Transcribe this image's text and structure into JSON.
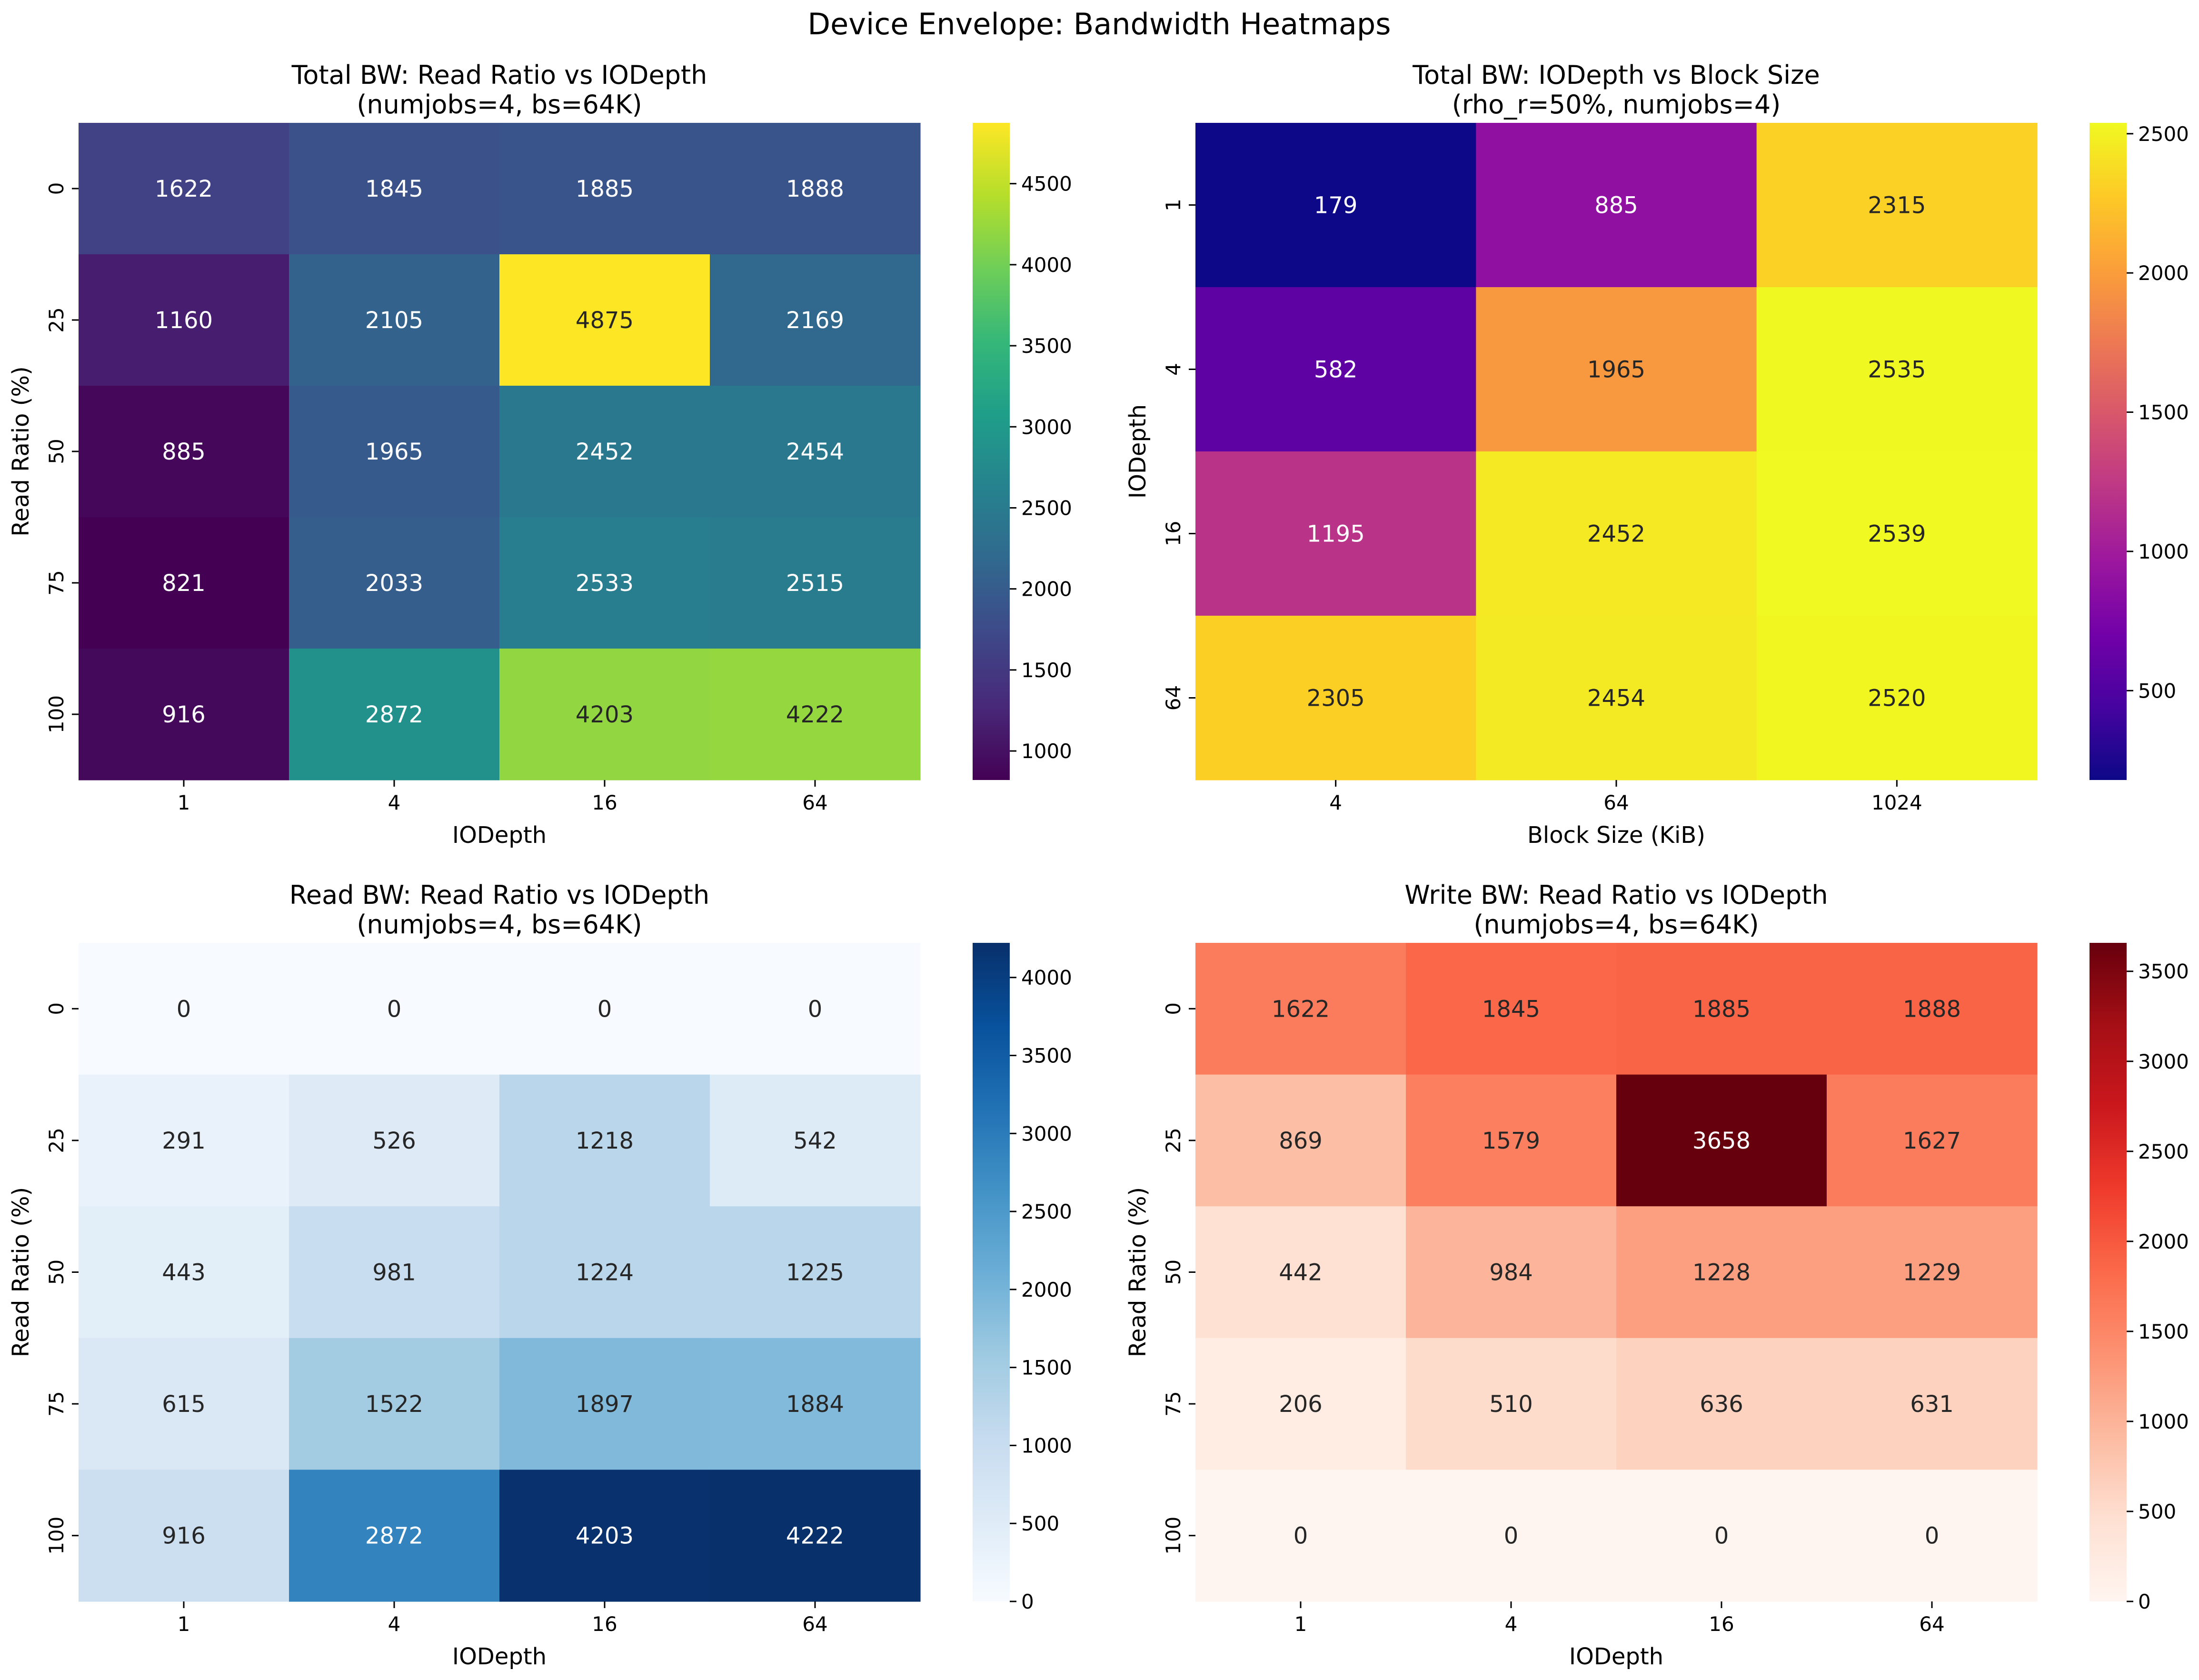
{
  "figure": {
    "title": "Device Envelope: Bandwidth Heatmaps"
  },
  "chart_data": [
    {
      "type": "heatmap",
      "title": "Total BW: Read Ratio vs IODepth\n(numjobs=4, bs=64K)",
      "xlabel": "IODepth",
      "ylabel": "Read Ratio (%)",
      "x_categories": [
        "1",
        "4",
        "16",
        "64"
      ],
      "y_categories": [
        "0",
        "25",
        "50",
        "75",
        "100"
      ],
      "values": [
        [
          1622,
          1845,
          1885,
          1888
        ],
        [
          1160,
          2105,
          4875,
          2169
        ],
        [
          885,
          1965,
          2452,
          2454
        ],
        [
          821,
          2033,
          2533,
          2515
        ],
        [
          916,
          2872,
          4203,
          4222
        ]
      ],
      "colormap": "viridis",
      "colorbar": {
        "range": [
          821,
          4875
        ],
        "ticks": [
          1000,
          1500,
          2000,
          2500,
          3000,
          3500,
          4000,
          4500
        ]
      }
    },
    {
      "type": "heatmap",
      "title": "Total BW: IODepth vs Block Size\n(rho_r=50%, numjobs=4)",
      "xlabel": "Block Size (KiB)",
      "ylabel": "IODepth",
      "x_categories": [
        "4",
        "64",
        "1024"
      ],
      "y_categories": [
        "1",
        "4",
        "16",
        "64"
      ],
      "values": [
        [
          179,
          885,
          2315
        ],
        [
          582,
          1965,
          2535
        ],
        [
          1195,
          2452,
          2539
        ],
        [
          2305,
          2454,
          2520
        ]
      ],
      "colormap": "plasma",
      "colorbar": {
        "range": [
          179,
          2539
        ],
        "ticks": [
          500,
          1000,
          1500,
          2000,
          2500
        ]
      }
    },
    {
      "type": "heatmap",
      "title": "Read BW: Read Ratio vs IODepth\n(numjobs=4, bs=64K)",
      "xlabel": "IODepth",
      "ylabel": "Read Ratio (%)",
      "x_categories": [
        "1",
        "4",
        "16",
        "64"
      ],
      "y_categories": [
        "0",
        "25",
        "50",
        "75",
        "100"
      ],
      "values": [
        [
          0,
          0,
          0,
          0
        ],
        [
          291,
          526,
          1218,
          542
        ],
        [
          443,
          981,
          1224,
          1225
        ],
        [
          615,
          1522,
          1897,
          1884
        ],
        [
          916,
          2872,
          4203,
          4222
        ]
      ],
      "colormap": "Blues",
      "colorbar": {
        "range": [
          0,
          4222
        ],
        "ticks": [
          0,
          500,
          1000,
          1500,
          2000,
          2500,
          3000,
          3500,
          4000
        ]
      }
    },
    {
      "type": "heatmap",
      "title": "Write BW: Read Ratio vs IODepth\n(numjobs=4, bs=64K)",
      "xlabel": "IODepth",
      "ylabel": "Read Ratio (%)",
      "x_categories": [
        "1",
        "4",
        "16",
        "64"
      ],
      "y_categories": [
        "0",
        "25",
        "50",
        "75",
        "100"
      ],
      "values": [
        [
          1622,
          1845,
          1885,
          1888
        ],
        [
          869,
          1579,
          3658,
          1627
        ],
        [
          442,
          984,
          1228,
          1229
        ],
        [
          206,
          510,
          636,
          631
        ],
        [
          0,
          0,
          0,
          0
        ]
      ],
      "colormap": "Reds",
      "colorbar": {
        "range": [
          0,
          3658
        ],
        "ticks": [
          0,
          500,
          1000,
          1500,
          2000,
          2500,
          3000,
          3500
        ]
      }
    }
  ],
  "colormaps": {
    "viridis": [
      "#440154",
      "#482878",
      "#3e4989",
      "#31688e",
      "#26828e",
      "#1f9e89",
      "#35b779",
      "#6ece58",
      "#b5de2b",
      "#fde725"
    ],
    "plasma": [
      "#0d0887",
      "#46039f",
      "#7201a8",
      "#9c179e",
      "#bd3786",
      "#d8576b",
      "#ed7953",
      "#fb9f3a",
      "#fdca26",
      "#f0f921"
    ],
    "Blues": [
      "#f7fbff",
      "#deebf7",
      "#c6dbef",
      "#9ecae1",
      "#6baed6",
      "#4292c6",
      "#2171b5",
      "#08519c",
      "#08306b"
    ],
    "Reds": [
      "#fff5f0",
      "#fee0d2",
      "#fcbba1",
      "#fc9272",
      "#fb6a4a",
      "#ef3b2c",
      "#cb181d",
      "#a50f15",
      "#67000d"
    ]
  }
}
